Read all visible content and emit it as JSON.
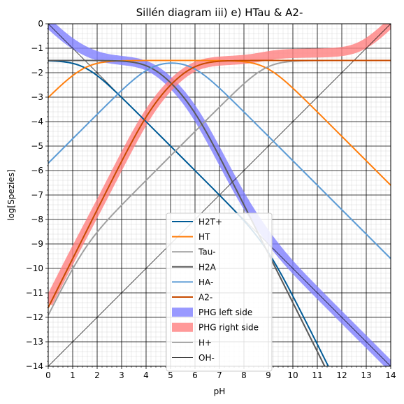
{
  "chart_data": {
    "type": "line",
    "title": "Sillén diagram iii) e) HTau & A2-",
    "xlabel": "pH",
    "ylabel": "log[Spezies]",
    "xlim": [
      0,
      14
    ],
    "ylim": [
      -14,
      0
    ],
    "x_ticks": [
      "0",
      "1",
      "2",
      "3",
      "4",
      "5",
      "6",
      "7",
      "8",
      "9",
      "10",
      "11",
      "12",
      "13",
      "14"
    ],
    "y_ticks": [
      "0",
      "−1",
      "−2",
      "−3",
      "−4",
      "−5",
      "−6",
      "−7",
      "−8",
      "−9",
      "−10",
      "−11",
      "−12",
      "−13",
      "−14"
    ],
    "grid": "major and minor",
    "legend_position": "bottom-center",
    "model": {
      "total_log_concentration": -1.5,
      "HTau_pKa": [
        1.5,
        8.9
      ],
      "A2_pKa": [
        4.2,
        5.9
      ]
    },
    "series": [
      {
        "name": "H2T+",
        "color": "#005b96",
        "width": 2,
        "curve": "H2T+"
      },
      {
        "name": "HT",
        "color": "#ff7f0e",
        "width": 2,
        "curve": "HT"
      },
      {
        "name": "Tau-",
        "color": "#a0a0a0",
        "width": 2,
        "curve": "Tau-"
      },
      {
        "name": "H2A",
        "color": "#5a5a5a",
        "width": 2,
        "curve": "H2A"
      },
      {
        "name": "HA-",
        "color": "#5b9bd5",
        "width": 2,
        "curve": "HA-"
      },
      {
        "name": "A2-",
        "color": "#c84b00",
        "width": 2,
        "curve": "A2-"
      },
      {
        "name": "PHG left side",
        "color": "#8080ff",
        "width": 13,
        "opacity": 0.8,
        "curve": "PHG-left"
      },
      {
        "name": "PHG right side",
        "color": "#ff8080",
        "width": 13,
        "opacity": 0.8,
        "curve": "PHG-right"
      },
      {
        "name": "H+",
        "color": "#000000",
        "width": 0.7,
        "curve": "H+"
      },
      {
        "name": "OH-",
        "color": "#000000",
        "width": 0.7,
        "curve": "OH-"
      }
    ]
  }
}
